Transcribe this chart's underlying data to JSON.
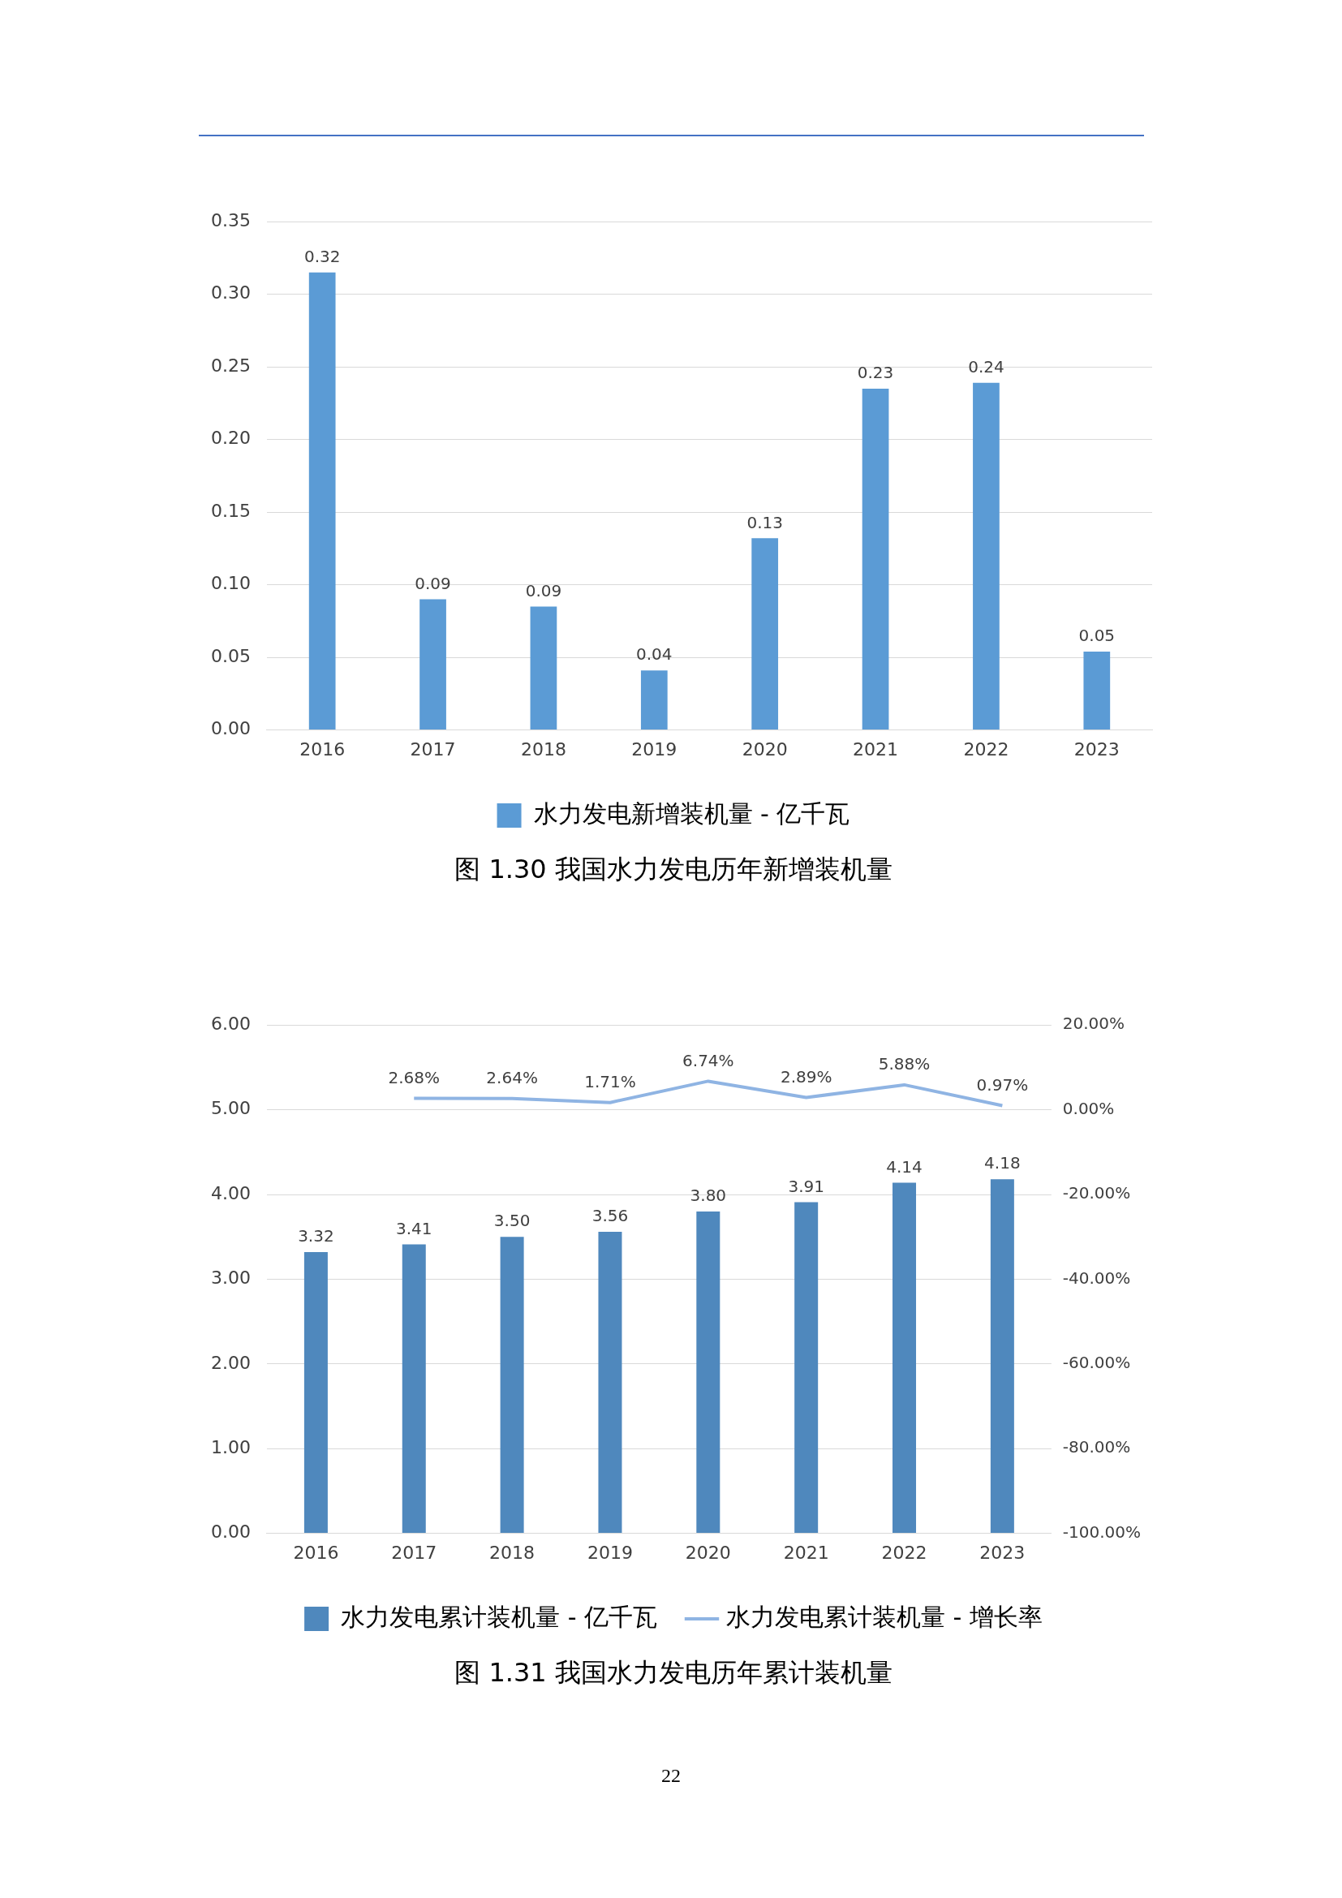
{
  "chart_data": [
    {
      "type": "bar",
      "title": "图 1.30 我国水力发电历年新增装机量",
      "categories": [
        "2016",
        "2017",
        "2018",
        "2019",
        "2020",
        "2021",
        "2022",
        "2023"
      ],
      "series": [
        {
          "name": "水力发电新增装机量 - 亿千瓦",
          "color": "#5b9bd5",
          "values": [
            0.315,
            0.09,
            0.085,
            0.041,
            0.132,
            0.235,
            0.239,
            0.054
          ],
          "value_labels": [
            "0.32",
            "0.09",
            "0.09",
            "0.04",
            "0.13",
            "0.23",
            "0.24",
            "0.05"
          ]
        }
      ],
      "ylim": [
        0,
        0.35
      ],
      "yticks": [
        {
          "value": 0,
          "label": "0.00"
        },
        {
          "value": 0.05,
          "label": "0.05"
        },
        {
          "value": 0.1,
          "label": "0.10"
        },
        {
          "value": 0.15,
          "label": "0.15"
        },
        {
          "value": 0.2,
          "label": "0.20"
        },
        {
          "value": 0.25,
          "label": "0.25"
        },
        {
          "value": 0.3,
          "label": "0.30"
        },
        {
          "value": 0.35,
          "label": "0.35"
        }
      ],
      "grid": "y",
      "legend": "bottom"
    },
    {
      "type": "bar",
      "title": "图 1.31 我国水力发电历年累计装机量",
      "categories": [
        "2016",
        "2017",
        "2018",
        "2019",
        "2020",
        "2021",
        "2022",
        "2023"
      ],
      "series": [
        {
          "name": "水力发电累计装机量 - 亿千瓦",
          "color": "#4f88bd",
          "values": [
            3.32,
            3.41,
            3.5,
            3.56,
            3.8,
            3.91,
            4.14,
            4.18
          ],
          "value_labels": [
            "3.32",
            "3.41",
            "3.50",
            "3.56",
            "3.80",
            "3.91",
            "4.14",
            "4.18"
          ]
        },
        {
          "type": "line",
          "axis": "y2",
          "name": "水力发电累计装机量 - 增长率",
          "color": "#8fb4e3",
          "values": [
            null,
            2.68,
            2.64,
            1.71,
            6.74,
            2.89,
            5.88,
            0.97
          ],
          "value_labels": [
            null,
            "2.68%",
            "2.64%",
            "1.71%",
            "6.74%",
            "2.89%",
            "5.88%",
            "0.97%"
          ]
        }
      ],
      "ylim": [
        0,
        6
      ],
      "yticks": [
        {
          "value": 0,
          "label": "0.00"
        },
        {
          "value": 1,
          "label": "1.00"
        },
        {
          "value": 2,
          "label": "2.00"
        },
        {
          "value": 3,
          "label": "3.00"
        },
        {
          "value": 4,
          "label": "4.00"
        },
        {
          "value": 5,
          "label": "5.00"
        },
        {
          "value": 6,
          "label": "6.00"
        }
      ],
      "y2lim": [
        -100,
        20
      ],
      "y2ticks": [
        {
          "value": -100,
          "label": "-100.00%"
        },
        {
          "value": -80,
          "label": "-80.00%"
        },
        {
          "value": -60,
          "label": "-60.00%"
        },
        {
          "value": -40,
          "label": "-40.00%"
        },
        {
          "value": -20,
          "label": "-20.00%"
        },
        {
          "value": 0,
          "label": "0.00%"
        },
        {
          "value": 20,
          "label": "20.00%"
        }
      ],
      "grid": "y",
      "legend": "bottom",
      "marker": "none",
      "line_style": "solid",
      "annotations": [
        "22"
      ]
    }
  ]
}
